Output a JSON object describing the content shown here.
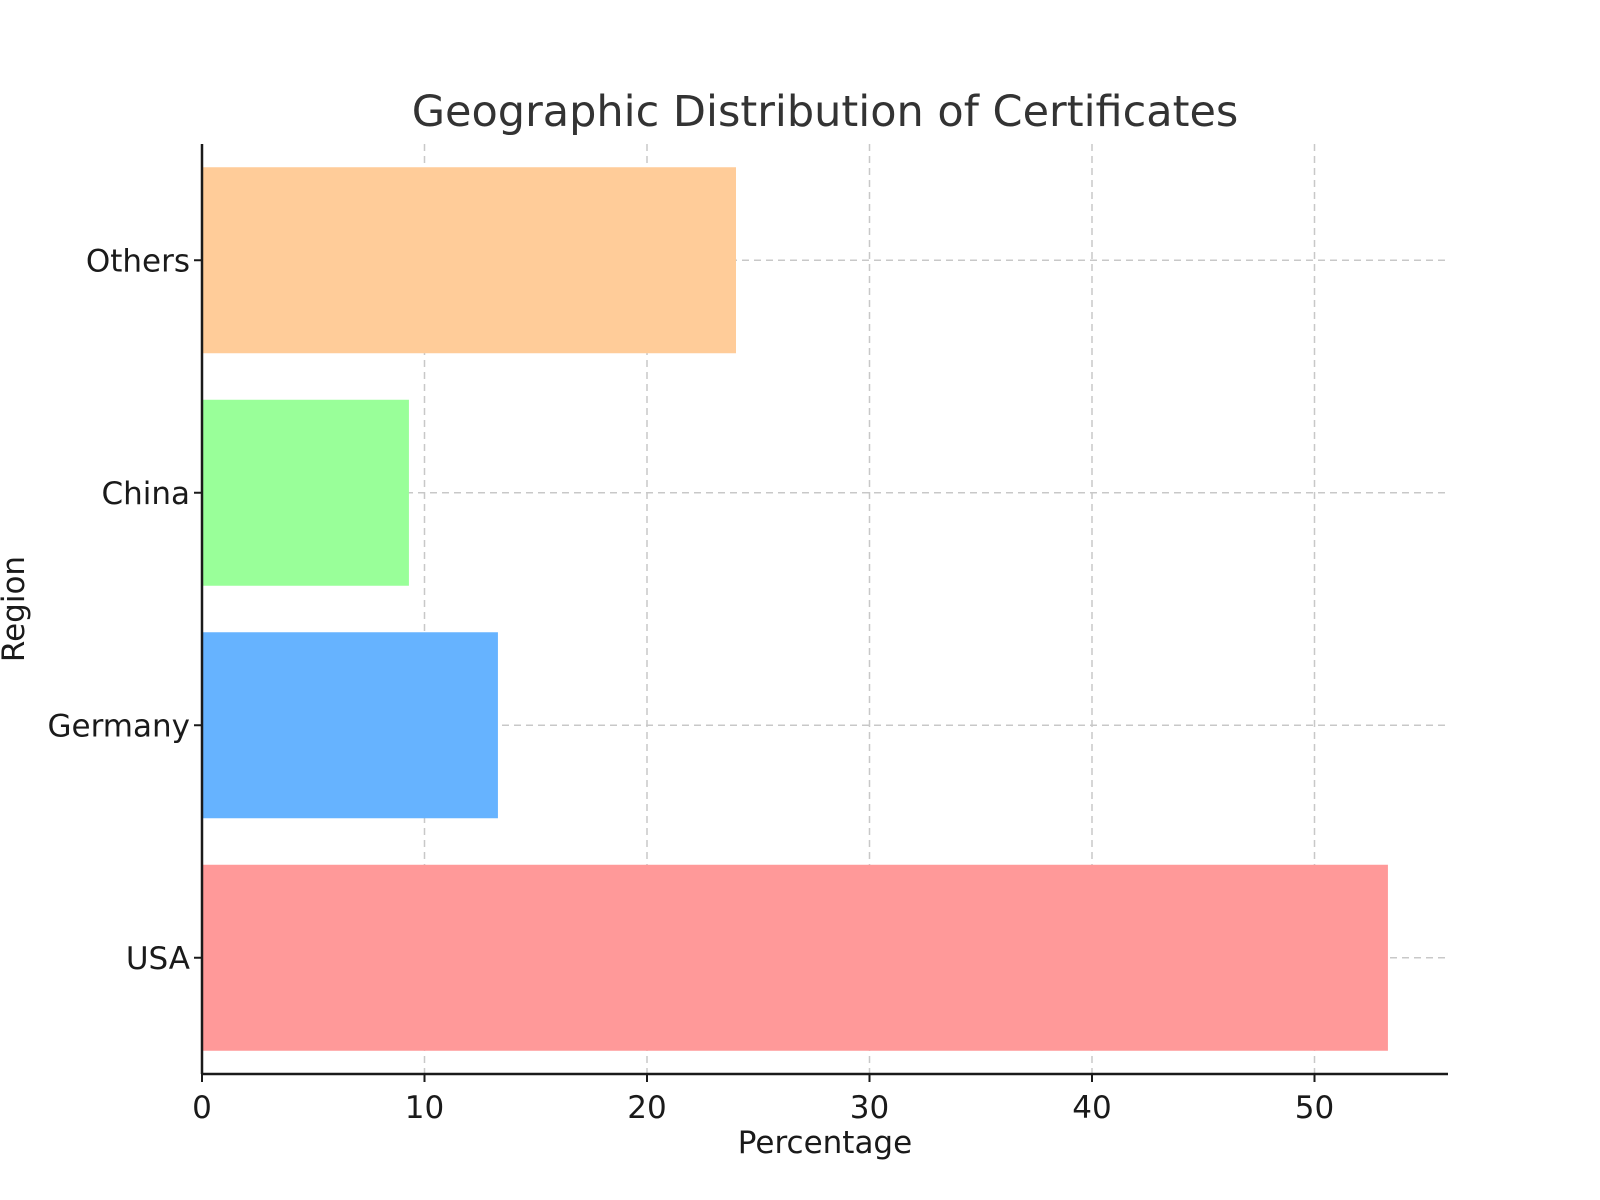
{
  "chart_data": {
    "type": "bar",
    "orientation": "horizontal",
    "title": "Geographic Distribution of Certificates",
    "xlabel": "Percentage",
    "ylabel": "Region",
    "categories": [
      "USA",
      "Germany",
      "China",
      "Others"
    ],
    "values": [
      53.3,
      13.3,
      9.3,
      24.0
    ],
    "colors": [
      "#ff9999",
      "#66b3ff",
      "#99ff99",
      "#ffcc99"
    ],
    "xlim": [
      0,
      56
    ],
    "xticks": [
      0,
      10,
      20,
      30,
      40,
      50
    ],
    "grid": true
  }
}
